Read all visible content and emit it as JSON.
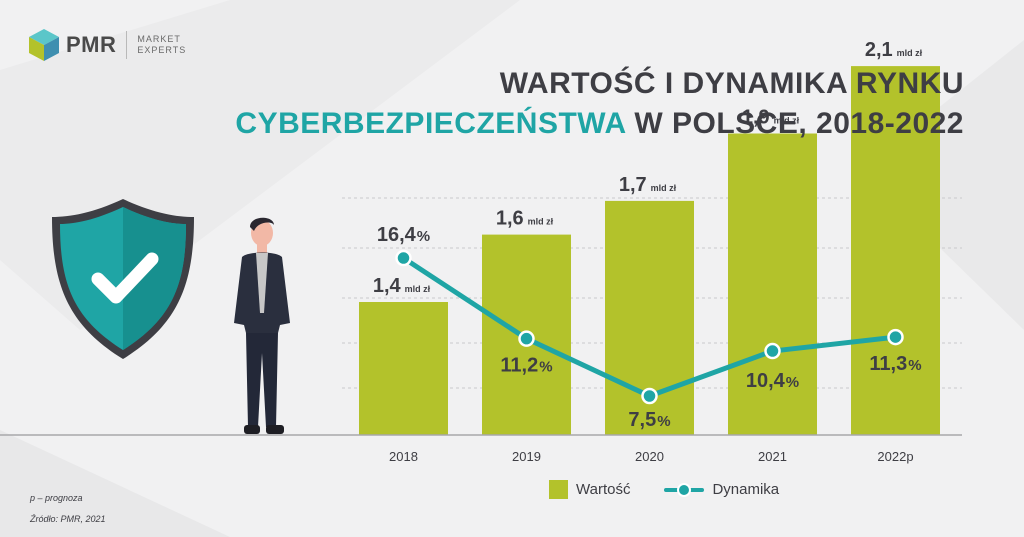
{
  "logo": {
    "brand": "PMR",
    "tag_line1": "MARKET",
    "tag_line2": "EXPERTS"
  },
  "header": {
    "title_line1": "WARTOŚĆ I DYNAMIKA RYNKU",
    "title_line2_accent": "CYBERBEZPIECZEŃSTWA",
    "title_line2_rest": " W POLSCE, 2018-2022"
  },
  "colors": {
    "bar": "#b3c22b",
    "line": "#1fa5a5",
    "text": "#3e3e44",
    "accent": "#1fa5a5"
  },
  "chart_data": {
    "type": "bar",
    "categories": [
      "2018",
      "2019",
      "2020",
      "2021",
      "2022p"
    ],
    "series": [
      {
        "name": "Wartość",
        "type": "bar",
        "values": [
          1.4,
          1.6,
          1.7,
          1.9,
          2.1
        ],
        "unit": "mld zł",
        "labels": [
          "1,4",
          "1,6",
          "1,7",
          "1,9",
          "2,1"
        ]
      },
      {
        "name": "Dynamika",
        "type": "line",
        "values": [
          16.4,
          11.2,
          7.5,
          10.4,
          11.3
        ],
        "unit": "%",
        "labels": [
          "16,4",
          "11,2",
          "7,5",
          "10,4",
          "11,3"
        ]
      }
    ],
    "grid": true,
    "legend": "bottom"
  },
  "legend": {
    "bar_label": "Wartość",
    "line_label": "Dynamika"
  },
  "footnotes": {
    "note": "p – prognoza",
    "source": "Źródło: PMR, 2021"
  }
}
